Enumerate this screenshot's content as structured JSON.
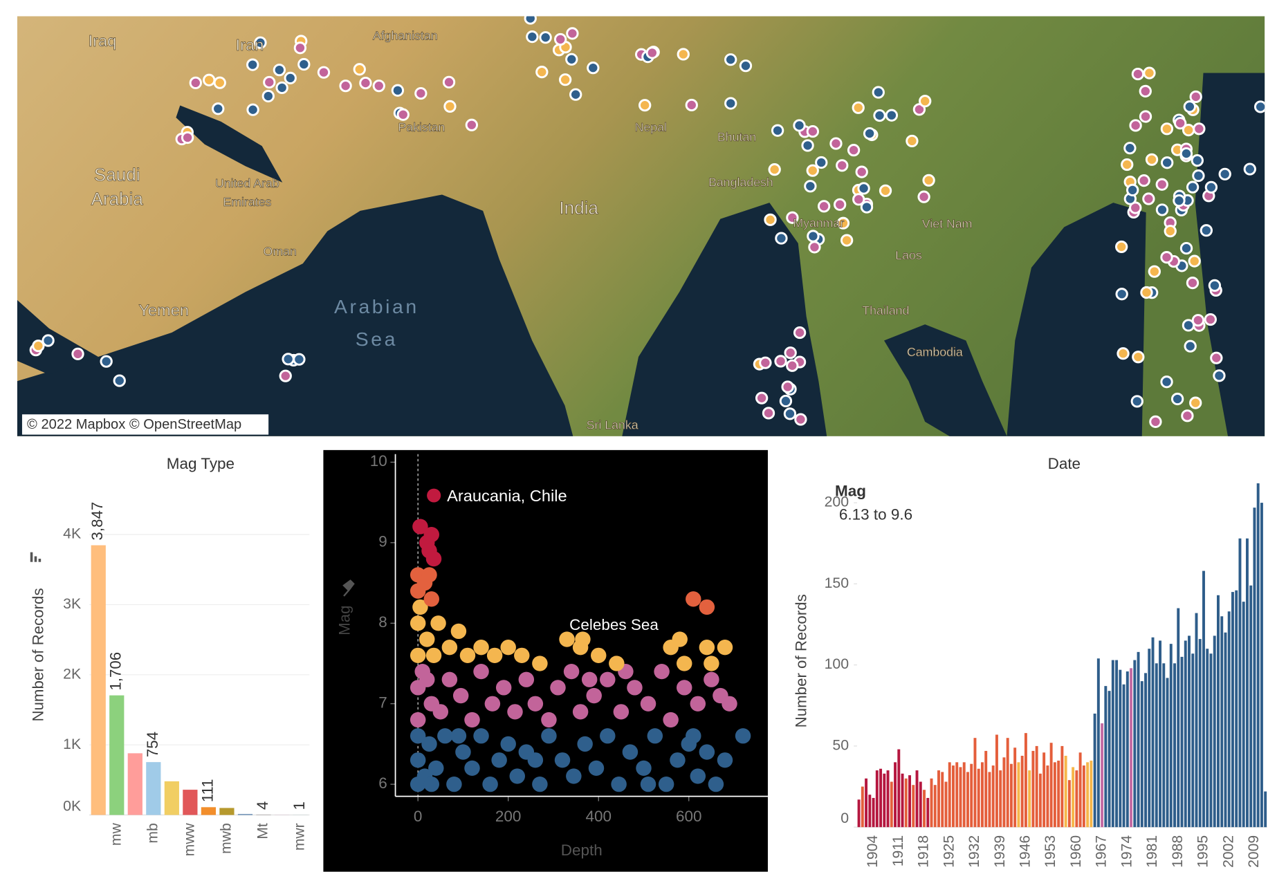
{
  "map": {
    "labels": [
      {
        "lines": [
          "Iraq"
        ]
      },
      {
        "lines": [
          "Iran"
        ]
      },
      {
        "lines": [
          "Afghanistan"
        ]
      },
      {
        "lines": [
          "Pakistan"
        ]
      },
      {
        "lines": [
          "Saudi",
          "Arabia"
        ]
      },
      {
        "lines": [
          "United Arab",
          "Emirates"
        ]
      },
      {
        "lines": [
          "Oman"
        ]
      },
      {
        "lines": [
          "Yemen"
        ]
      },
      {
        "lines": [
          "India"
        ]
      },
      {
        "lines": [
          "Arabian",
          "Sea"
        ]
      },
      {
        "lines": [
          "Nepal"
        ]
      },
      {
        "lines": [
          "Bhutan"
        ]
      },
      {
        "lines": [
          "Bangladesh"
        ]
      },
      {
        "lines": [
          "Myanmar"
        ]
      },
      {
        "lines": [
          "Viet Nam"
        ]
      },
      {
        "lines": [
          "Laos"
        ]
      },
      {
        "lines": [
          "Thailand"
        ]
      },
      {
        "lines": [
          "Cambodia"
        ]
      },
      {
        "lines": [
          "Sri Lanka"
        ]
      }
    ],
    "attribution": "© 2022 Mapbox © OpenStreetMap"
  },
  "chart_data": [
    {
      "type": "bar",
      "title": "Mag Type",
      "y_label": "Number of Records",
      "categories": [
        null,
        "mw",
        null,
        "mb",
        null,
        "mww",
        null,
        "mwb",
        null,
        "Mt",
        null,
        "mwr"
      ],
      "values": [
        3847,
        1706,
        880,
        754,
        480,
        360,
        111,
        100,
        12,
        4,
        2,
        1
      ],
      "value_labels": [
        "3,847",
        "1,706",
        null,
        "754",
        null,
        null,
        "111",
        null,
        null,
        "4",
        null,
        "1"
      ],
      "colors": [
        "#ffbe7d",
        "#8cd17d",
        "#ff9d9a",
        "#a0cbe8",
        "#f1ce63",
        "#e15759",
        "#f28e2b",
        "#b6992d",
        "#4e79a7",
        "#79706e",
        "#d4a6c8",
        "#86bcb6"
      ],
      "ylim": [
        0,
        4800
      ],
      "yticks": [
        {
          "value": 0,
          "label": "0K"
        },
        {
          "value": 1000,
          "label": "1K"
        },
        {
          "value": 2000,
          "label": "2K"
        },
        {
          "value": 3000,
          "label": "3K"
        },
        {
          "value": 4000,
          "label": "4K"
        }
      ],
      "grid": true
    },
    {
      "type": "scatter",
      "x_label": "Depth",
      "y_label": "Mag",
      "annotations": [
        "Araucania, Chile",
        "Celebes Sea"
      ],
      "xlim": [
        -50,
        775
      ],
      "ylim": [
        5.85,
        10.1
      ],
      "xticks": [
        0,
        200,
        400,
        600
      ],
      "yticks": [
        6,
        7,
        8,
        9,
        10
      ],
      "series": [
        {
          "color": "#2f5f8c",
          "x": [
            0,
            0,
            0,
            15,
            25,
            40,
            60,
            80,
            100,
            120,
            140,
            160,
            180,
            200,
            220,
            240,
            270,
            290,
            320,
            345,
            370,
            395,
            420,
            445,
            470,
            500,
            525,
            550,
            575,
            600,
            620,
            640,
            660,
            680,
            720,
            30,
            90,
            260,
            510,
            610
          ],
          "values": [
            6.0,
            6.3,
            6.6,
            6.1,
            6.5,
            6.2,
            6.6,
            6.0,
            6.4,
            6.2,
            6.6,
            6.0,
            6.3,
            6.5,
            6.1,
            6.4,
            6.0,
            6.6,
            6.3,
            6.1,
            6.5,
            6.2,
            6.6,
            6.0,
            6.4,
            6.2,
            6.6,
            6.0,
            6.3,
            6.5,
            6.1,
            6.4,
            6.0,
            6.3,
            6.6,
            6.0,
            6.6,
            6.3,
            6.0,
            6.6
          ]
        },
        {
          "color": "#c2649a",
          "x": [
            0,
            0,
            10,
            30,
            50,
            70,
            95,
            120,
            140,
            165,
            190,
            215,
            240,
            260,
            290,
            310,
            340,
            360,
            390,
            420,
            450,
            480,
            510,
            540,
            560,
            590,
            620,
            650,
            670,
            690,
            460,
            380,
            20
          ],
          "values": [
            6.8,
            7.2,
            7.4,
            7.0,
            6.9,
            7.3,
            7.1,
            6.8,
            7.4,
            7.0,
            7.2,
            6.9,
            7.3,
            7.0,
            6.8,
            7.2,
            7.4,
            6.9,
            7.1,
            7.3,
            6.9,
            7.2,
            7.0,
            7.4,
            6.8,
            7.2,
            7.0,
            7.3,
            7.1,
            7.0,
            7.4,
            7.3,
            7.3
          ]
        },
        {
          "color": "#f4b64f",
          "x": [
            0,
            0,
            5,
            20,
            35,
            45,
            70,
            90,
            110,
            140,
            170,
            200,
            230,
            270,
            330,
            360,
            400,
            440,
            560,
            580,
            590,
            640,
            680,
            650,
            365
          ],
          "values": [
            7.6,
            8.0,
            8.2,
            7.8,
            7.6,
            8.0,
            7.7,
            7.9,
            7.6,
            7.7,
            7.6,
            7.7,
            7.6,
            7.5,
            7.8,
            7.7,
            7.6,
            7.5,
            7.7,
            7.8,
            7.5,
            7.7,
            7.7,
            7.5,
            7.8
          ]
        },
        {
          "color": "#e3613e",
          "x": [
            0,
            0,
            15,
            30,
            25,
            610,
            640
          ],
          "values": [
            8.6,
            8.4,
            8.5,
            8.3,
            8.6,
            8.3,
            8.2
          ]
        },
        {
          "color": "#c11a3f",
          "x": [
            5,
            20,
            30,
            25,
            35
          ],
          "values": [
            9.2,
            9.0,
            9.1,
            8.9,
            8.8
          ]
        }
      ]
    },
    {
      "type": "bar",
      "title": "Date",
      "y_label": "Number of Records",
      "legend": {
        "title": "Mag",
        "text": "6.13 to 9.6"
      },
      "categories": [
        null,
        null,
        null,
        null,
        "1904",
        null,
        null,
        null,
        null,
        null,
        null,
        "1911",
        null,
        null,
        null,
        null,
        null,
        null,
        "1918",
        null,
        null,
        null,
        null,
        null,
        null,
        "1925",
        null,
        null,
        null,
        null,
        null,
        null,
        "1932",
        null,
        null,
        null,
        null,
        null,
        null,
        "1939",
        null,
        null,
        null,
        null,
        null,
        null,
        "1946",
        null,
        null,
        null,
        null,
        null,
        null,
        "1953",
        null,
        null,
        null,
        null,
        null,
        null,
        "1960",
        null,
        null,
        null,
        null,
        null,
        null,
        "1967",
        null,
        null,
        null,
        null,
        null,
        null,
        "1974",
        null,
        null,
        null,
        null,
        null,
        null,
        "1981",
        null,
        null,
        null,
        null,
        null,
        null,
        "1988",
        null,
        null,
        null,
        null,
        null,
        null,
        "1995",
        null,
        null,
        null,
        null,
        null,
        null,
        "2002",
        null,
        null,
        null,
        null,
        null,
        null,
        "2009",
        null,
        null,
        null
      ],
      "values": [
        17,
        25,
        30,
        20,
        18,
        35,
        36,
        33,
        35,
        28,
        40,
        48,
        33,
        30,
        32,
        26,
        35,
        28,
        23,
        18,
        30,
        26,
        35,
        34,
        28,
        40,
        38,
        40,
        37,
        40,
        34,
        39,
        55,
        36,
        40,
        47,
        34,
        38,
        57,
        35,
        43,
        55,
        39,
        49,
        40,
        44,
        58,
        35,
        47,
        50,
        33,
        46,
        38,
        52,
        40,
        41,
        50,
        44,
        29,
        37,
        35,
        46,
        38,
        40,
        41,
        70,
        104,
        64,
        87,
        84,
        103,
        103,
        97,
        88,
        96,
        98,
        103,
        108,
        90,
        95,
        110,
        117,
        101,
        115,
        101,
        92,
        113,
        101,
        135,
        105,
        115,
        118,
        107,
        132,
        116,
        158,
        110,
        107,
        118,
        143,
        130,
        120,
        133,
        145,
        146,
        178,
        139,
        178,
        149,
        197,
        212,
        200,
        22
      ],
      "colors": [
        "#b5173f",
        "#e45e3b",
        "#b5173f",
        "#b5173f",
        "#b5173f",
        "#b5173f",
        "#b5173f",
        "#b5173f",
        "#b5173f",
        "#e45e3b",
        "#b5173f",
        "#b5173f",
        "#b5173f",
        "#e45e3b",
        "#b5173f",
        "#e45e3b",
        "#b5173f",
        "#b5173f",
        "#e45e3b",
        "#b5173f",
        "#e45e3b",
        "#e45e3b",
        "#e45e3b",
        "#e45e3b",
        "#e45e3b",
        "#e45e3b",
        "#e45e3b",
        "#e45e3b",
        "#e45e3b",
        "#e45e3b",
        "#e45e3b",
        "#e45e3b",
        "#e45e3b",
        "#e45e3b",
        "#e45e3b",
        "#e45e3b",
        "#e45e3b",
        "#e45e3b",
        "#e45e3b",
        "#e45e3b",
        "#e45e3b",
        "#e45e3b",
        "#e45e3b",
        "#e45e3b",
        "#f6b64a",
        "#e45e3b",
        "#e45e3b",
        "#f6b64a",
        "#e45e3b",
        "#e45e3b",
        "#e45e3b",
        "#e45e3b",
        "#e45e3b",
        "#e45e3b",
        "#e45e3b",
        "#e45e3b",
        "#e45e3b",
        "#f6b64a",
        "#e45e3b",
        "#f6b64a",
        "#e45e3b",
        "#e45e3b",
        "#e45e3b",
        "#f6b64a",
        "#f6b64a",
        "#2e5d8a",
        "#2e5d8a",
        "#c36aa3",
        "#2e5d8a",
        "#2e5d8a",
        "#2e5d8a",
        "#2e5d8a",
        "#2e5d8a",
        "#2e5d8a",
        "#2e5d8a",
        "#c36aa3",
        "#2e5d8a",
        "#2e5d8a",
        "#2e5d8a",
        "#2e5d8a",
        "#2e5d8a",
        "#2e5d8a",
        "#2e5d8a",
        "#2e5d8a",
        "#2e5d8a",
        "#2e5d8a",
        "#2e5d8a",
        "#2e5d8a",
        "#2e5d8a",
        "#2e5d8a",
        "#2e5d8a",
        "#2e5d8a",
        "#2e5d8a",
        "#2e5d8a",
        "#2e5d8a",
        "#2e5d8a",
        "#2e5d8a",
        "#2e5d8a",
        "#2e5d8a",
        "#2e5d8a",
        "#2e5d8a",
        "#2e5d8a",
        "#2e5d8a",
        "#2e5d8a",
        "#2e5d8a",
        "#2e5d8a",
        "#2e5d8a",
        "#2e5d8a",
        "#2e5d8a",
        "#2e5d8a",
        "#2e5d8a",
        "#2e5d8a",
        "#2e5d8a"
      ],
      "ylim": [
        0,
        215
      ],
      "yticks": [
        0,
        50,
        100,
        150,
        200
      ],
      "grid": false
    }
  ]
}
